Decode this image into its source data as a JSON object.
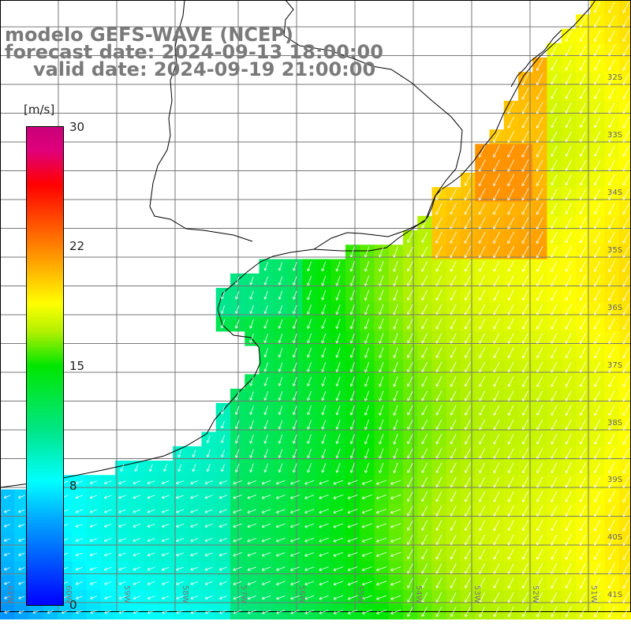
{
  "title": {
    "line1": "modelo GEFS-WAVE (NCEP)",
    "line2": "forecast date: 2024-09-13 18:00:00",
    "line3": "valid date: 2024-09-19 21:00:00"
  },
  "colorbar": {
    "units": "[m/s]",
    "ticks": [
      "30",
      "22",
      "15",
      "8",
      "0"
    ],
    "min": 0,
    "max": 30
  },
  "lat_labels": [
    "32S",
    "33S",
    "34S",
    "35S",
    "36S",
    "37S",
    "38S",
    "39S",
    "40S",
    "41S"
  ],
  "lon_labels": [
    "61W",
    "60W",
    "59W",
    "58W",
    "57W",
    "56W",
    "55W",
    "54W",
    "53W",
    "52W",
    "51W"
  ],
  "colors": {
    "grid": "#777777",
    "coast": "#000000",
    "title": "#7a7a7a",
    "arrow": "#ffffff"
  }
}
